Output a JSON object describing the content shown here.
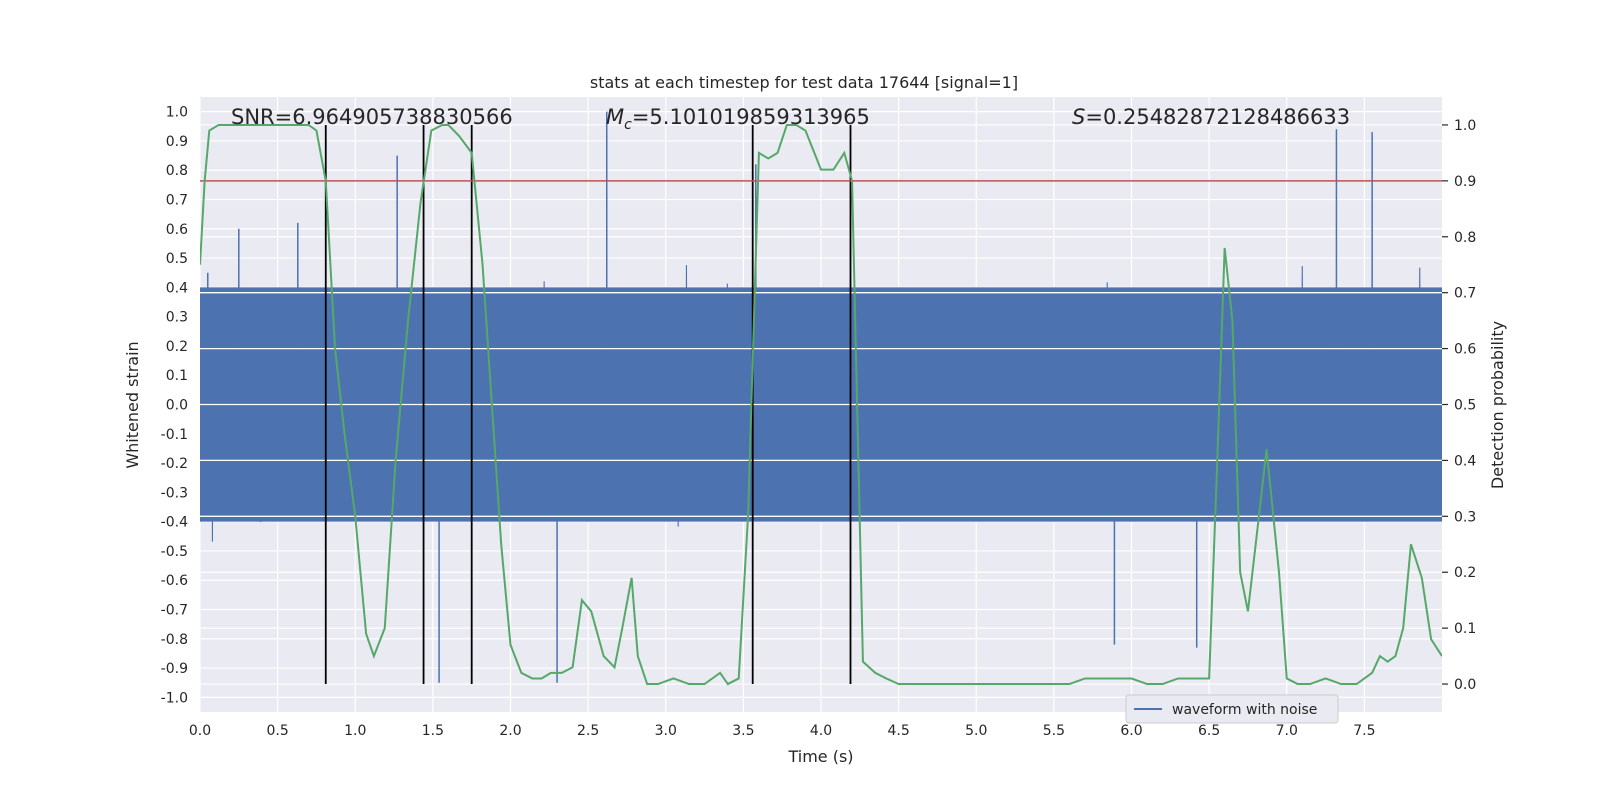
{
  "chart_data": {
    "type": "line",
    "title": "stats at each timestep for test data 17644 [signal=1]",
    "xlabel": "Time (s)",
    "ylabel_left": "Whitened strain",
    "ylabel_right": "Detection probability",
    "xlim": [
      0.0,
      8.0
    ],
    "ylim_left": [
      -1.05,
      1.05
    ],
    "ylim_right": [
      -0.05,
      1.05
    ],
    "x_ticks": [
      "0.0",
      "0.5",
      "1.0",
      "1.5",
      "2.0",
      "2.5",
      "3.0",
      "3.5",
      "4.0",
      "4.5",
      "5.0",
      "5.5",
      "6.0",
      "6.5",
      "7.0",
      "7.5"
    ],
    "y_left_ticks": [
      "1.0",
      "0.9",
      "0.8",
      "0.7",
      "0.6",
      "0.5",
      "0.4",
      "0.3",
      "0.2",
      "0.1",
      "0.0",
      "-0.1",
      "-0.2",
      "-0.3",
      "-0.4",
      "-0.5",
      "-0.6",
      "-0.7",
      "-0.8",
      "-0.9",
      "-1.0"
    ],
    "y_right_ticks": [
      "1.0",
      "0.9",
      "0.8",
      "0.7",
      "0.6",
      "0.5",
      "0.4",
      "0.3",
      "0.2",
      "0.1",
      "0.0"
    ],
    "grid": true,
    "annotations": {
      "snr": "SNR=6.964905738830566",
      "mc_symbol": "M",
      "mc_sub": "c",
      "mc_value": "=5.101019859313965",
      "s_symbol": "S",
      "s_value": "=0.25482872128486633"
    },
    "threshold": {
      "value": 0.9,
      "axis": "right",
      "color": "#C44E52"
    },
    "vertical_lines": [
      0.81,
      1.44,
      1.75,
      3.56,
      4.19
    ],
    "series": [
      {
        "name": "waveform with noise",
        "color": "#4C72B0",
        "axis": "left",
        "note": "dense whitened-strain noise, core about ±0.40, spikes up to about ±0.95",
        "peaks": [
          [
            0.05,
            0.45
          ],
          [
            0.25,
            0.6
          ],
          [
            0.63,
            0.62
          ],
          [
            0.81,
            -0.75
          ],
          [
            1.27,
            0.85
          ],
          [
            1.54,
            -0.95
          ],
          [
            2.3,
            -0.95
          ],
          [
            2.62,
            1.0
          ],
          [
            3.58,
            0.82
          ],
          [
            5.89,
            -0.82
          ],
          [
            6.42,
            -0.83
          ],
          [
            7.32,
            0.94
          ],
          [
            7.55,
            0.93
          ]
        ]
      },
      {
        "name": "detection probability",
        "color": "#55A868",
        "axis": "right",
        "x": [
          0.0,
          0.03,
          0.06,
          0.12,
          0.2,
          0.3,
          0.4,
          0.5,
          0.6,
          0.7,
          0.75,
          0.81,
          0.87,
          0.93,
          1.0,
          1.07,
          1.12,
          1.19,
          1.26,
          1.34,
          1.42,
          1.49,
          1.56,
          1.6,
          1.67,
          1.75,
          1.82,
          1.88,
          1.94,
          2.0,
          2.07,
          2.14,
          2.2,
          2.26,
          2.33,
          2.4,
          2.46,
          2.52,
          2.6,
          2.67,
          2.72,
          2.78,
          2.82,
          2.88,
          2.95,
          3.05,
          3.15,
          3.25,
          3.35,
          3.4,
          3.47,
          3.53,
          3.6,
          3.66,
          3.72,
          3.78,
          3.84,
          3.9,
          4.0,
          4.08,
          4.15,
          4.2,
          4.27,
          4.35,
          4.42,
          4.5,
          4.6,
          4.7,
          4.8,
          4.9,
          5.0,
          5.1,
          5.2,
          5.3,
          5.4,
          5.5,
          5.6,
          5.7,
          5.8,
          5.9,
          6.0,
          6.1,
          6.2,
          6.3,
          6.4,
          6.5,
          6.55,
          6.6,
          6.65,
          6.7,
          6.75,
          6.8,
          6.87,
          6.95,
          7.0,
          7.07,
          7.15,
          7.25,
          7.35,
          7.45,
          7.55,
          7.6,
          7.65,
          7.7,
          7.75,
          7.8,
          7.87,
          7.93,
          8.0
        ],
        "y": [
          0.75,
          0.9,
          0.99,
          1.0,
          1.0,
          1.0,
          1.0,
          1.0,
          1.0,
          1.0,
          0.99,
          0.9,
          0.6,
          0.45,
          0.3,
          0.09,
          0.05,
          0.1,
          0.4,
          0.65,
          0.86,
          0.99,
          1.0,
          1.0,
          0.98,
          0.95,
          0.75,
          0.5,
          0.25,
          0.07,
          0.02,
          0.01,
          0.01,
          0.02,
          0.02,
          0.03,
          0.15,
          0.13,
          0.05,
          0.03,
          0.1,
          0.19,
          0.05,
          0.0,
          0.0,
          0.01,
          0.0,
          0.0,
          0.02,
          0.0,
          0.01,
          0.3,
          0.95,
          0.94,
          0.95,
          1.0,
          1.0,
          0.99,
          0.92,
          0.92,
          0.95,
          0.9,
          0.04,
          0.02,
          0.01,
          0.0,
          0.0,
          0.0,
          0.0,
          0.0,
          0.0,
          0.0,
          0.0,
          0.0,
          0.0,
          0.0,
          0.0,
          0.01,
          0.01,
          0.01,
          0.01,
          0.0,
          0.0,
          0.01,
          0.01,
          0.01,
          0.38,
          0.78,
          0.65,
          0.2,
          0.13,
          0.25,
          0.42,
          0.2,
          0.01,
          0.0,
          0.0,
          0.01,
          0.0,
          0.0,
          0.02,
          0.05,
          0.04,
          0.05,
          0.1,
          0.25,
          0.19,
          0.08,
          0.05
        ]
      }
    ],
    "legend": {
      "label": "waveform with noise",
      "placement": "lower-right"
    }
  }
}
